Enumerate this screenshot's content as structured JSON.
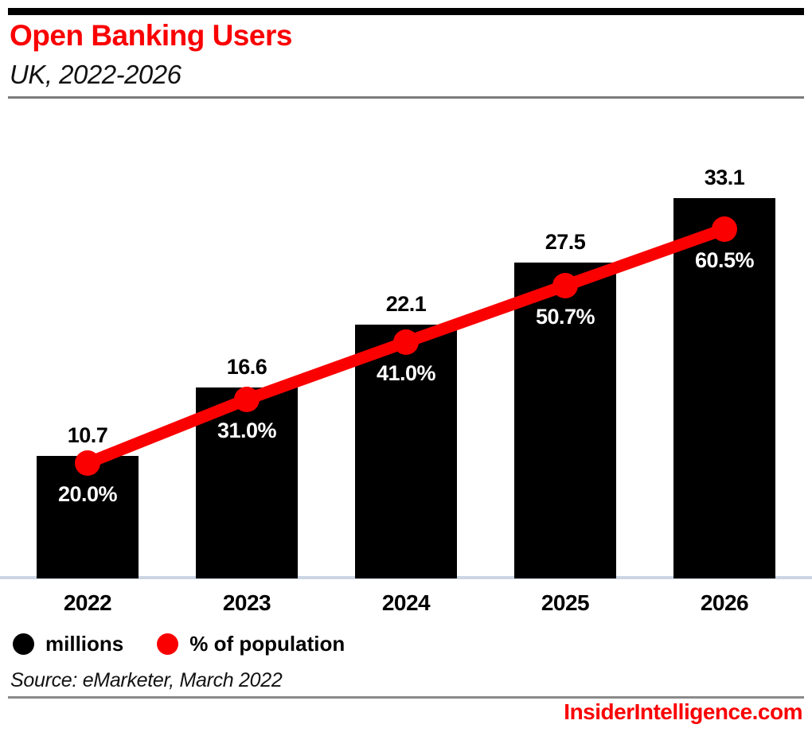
{
  "header": {
    "title": "Open Banking Users",
    "subtitle": "UK, 2022-2026"
  },
  "legend": [
    {
      "label": "millions",
      "color": "#000000"
    },
    {
      "label": "% of population",
      "color": "#fa0000"
    }
  ],
  "source_note": "Source: eMarketer, March 2022",
  "footer": {
    "site": "InsiderIntelligence.com"
  },
  "colors": {
    "accent_red": "#fa0000",
    "bar_black": "#000000",
    "baseline_rule": "#ccd5e2",
    "header_rule": "#7b7b7b",
    "footer_rule": "#8a8a8a",
    "pct_label_text": "#ffffff"
  },
  "chart_data": {
    "type": "bar",
    "title": "Open Banking Users",
    "subtitle": "UK, 2022-2026",
    "categories": [
      "2022",
      "2023",
      "2024",
      "2025",
      "2026"
    ],
    "series": [
      {
        "name": "millions",
        "type": "bar",
        "color": "#000000",
        "values": [
          10.7,
          16.6,
          22.1,
          27.5,
          33.1
        ],
        "labels": [
          "10.7",
          "16.6",
          "22.1",
          "27.5",
          "33.1"
        ]
      },
      {
        "name": "% of population",
        "type": "line",
        "color": "#fa0000",
        "values": [
          20.0,
          31.0,
          41.0,
          50.7,
          60.5
        ],
        "labels": [
          "20.0%",
          "31.0%",
          "41.0%",
          "50.7%",
          "60.5%"
        ]
      }
    ],
    "xlabel": "",
    "ylabel": "",
    "grid": false,
    "legend_position": "bottom",
    "value_axis_range_millions": [
      0,
      33.1
    ],
    "value_axis_range_percent": [
      0,
      60.5
    ]
  }
}
